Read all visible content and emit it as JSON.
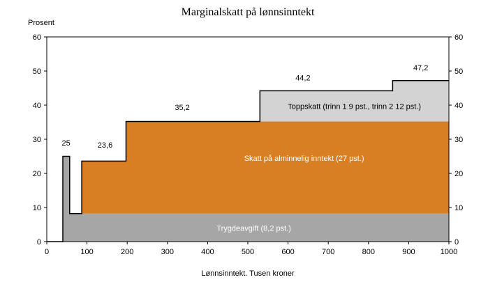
{
  "chart_data": {
    "type": "area",
    "title": "Marginalskatt på lønnsinntekt",
    "ylabel": "Prosent",
    "xlabel": "Lønnsinntekt. Tusen kroner",
    "xlim": [
      0,
      1000
    ],
    "ylim": [
      0,
      60
    ],
    "x_ticks": [
      0,
      100,
      200,
      300,
      400,
      500,
      600,
      700,
      800,
      900,
      1000
    ],
    "y_ticks": [
      0,
      10,
      20,
      30,
      40,
      50,
      60
    ],
    "grid": false,
    "colors": {
      "trygdeavgift": "#a6a6a6",
      "alminnelig": "#d97f23",
      "toppskatt": "#d3d3d3",
      "line": "#000000"
    },
    "marginal_tax_curve": [
      {
        "x": 0,
        "y": 0
      },
      {
        "x": 40,
        "y": 0
      },
      {
        "x": 40,
        "y": 25
      },
      {
        "x": 57,
        "y": 25
      },
      {
        "x": 57,
        "y": 8.2
      },
      {
        "x": 87,
        "y": 8.2
      },
      {
        "x": 87,
        "y": 23.6
      },
      {
        "x": 197,
        "y": 23.6
      },
      {
        "x": 197,
        "y": 35.2
      },
      {
        "x": 530,
        "y": 35.2
      },
      {
        "x": 530,
        "y": 44.2
      },
      {
        "x": 860,
        "y": 44.2
      },
      {
        "x": 860,
        "y": 47.2
      },
      {
        "x": 1000,
        "y": 47.2
      }
    ],
    "bands": [
      {
        "name": "Trygdeavgift (8,2 pst.)",
        "key": "trygdeavgift",
        "polygon": [
          [
            40,
            0
          ],
          [
            40,
            25
          ],
          [
            57,
            25
          ],
          [
            57,
            8.2
          ],
          [
            1000,
            8.2
          ],
          [
            1000,
            0
          ]
        ],
        "label_x": 515,
        "label_y": 4
      },
      {
        "name": "Skatt på alminnelig inntekt (27 pst.)",
        "key": "alminnelig",
        "polygon": [
          [
            87,
            8.2
          ],
          [
            87,
            23.6
          ],
          [
            197,
            23.6
          ],
          [
            197,
            35.2
          ],
          [
            1000,
            35.2
          ],
          [
            1000,
            8.2
          ]
        ],
        "label_x": 640,
        "label_y": 24.5
      },
      {
        "name": "Toppskatt (trinn 1 9 pst., trinn 2 12 pst.)",
        "key": "toppskatt",
        "polygon": [
          [
            530,
            35.2
          ],
          [
            530,
            44.2
          ],
          [
            860,
            44.2
          ],
          [
            860,
            47.2
          ],
          [
            1000,
            47.2
          ],
          [
            1000,
            35.2
          ]
        ],
        "label_x": 765,
        "label_y": 39.7
      }
    ],
    "data_labels": [
      {
        "text": "25",
        "x": 48,
        "y": 28.2
      },
      {
        "text": "23,6",
        "x": 145,
        "y": 27.6
      },
      {
        "text": "35,2",
        "x": 337,
        "y": 38.6
      },
      {
        "text": "44,2",
        "x": 637,
        "y": 47.2
      },
      {
        "text": "47,2",
        "x": 930,
        "y": 50.2
      }
    ]
  }
}
